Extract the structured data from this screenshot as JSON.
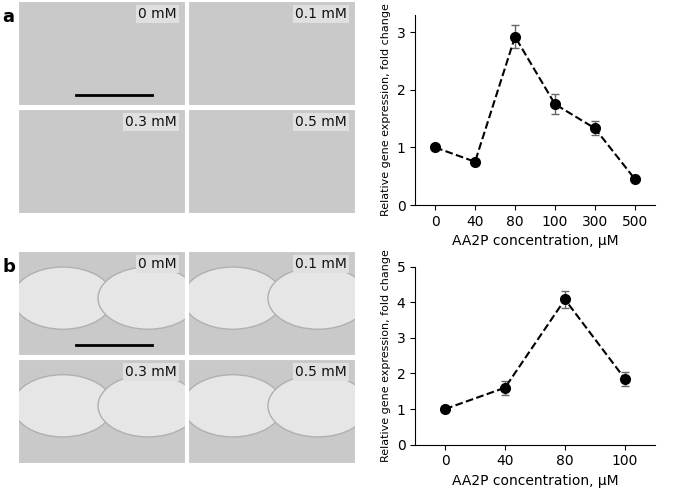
{
  "panel_labels": [
    "a",
    "b"
  ],
  "image_labels": [
    [
      "0 mM",
      "0.1 mM",
      "0.3 mM",
      "0.5 mM"
    ],
    [
      "0 mM",
      "0.1 mM",
      "0.3 mM",
      "0.5 mM"
    ]
  ],
  "chart_data": [
    {
      "type": "line",
      "x_label": "AA2P concentration, μM",
      "y_label": "Relative gene expression, fold change",
      "categories": [
        "0",
        "40",
        "80",
        "100",
        "300",
        "500"
      ],
      "values": [
        1.0,
        0.75,
        2.92,
        1.75,
        1.33,
        0.45
      ],
      "errors": [
        0.03,
        0.03,
        0.2,
        0.17,
        0.12,
        0.03
      ],
      "color": "#000000",
      "marker": "o",
      "line_style": "dashed",
      "ylim": [
        0,
        3.3
      ],
      "yticks": [
        0,
        1,
        2,
        3
      ],
      "grid": false
    },
    {
      "type": "line",
      "x_label": "AA2P concentration, μM",
      "y_label": "Relative gene expression, fold change",
      "categories": [
        "0",
        "40",
        "80",
        "100"
      ],
      "values": [
        1.0,
        1.6,
        4.08,
        1.85
      ],
      "errors": [
        0.03,
        0.2,
        0.25,
        0.2
      ],
      "color": "#000000",
      "marker": "o",
      "line_style": "dashed",
      "ylim": [
        0,
        5
      ],
      "yticks": [
        0,
        1,
        2,
        3,
        4,
        5
      ],
      "grid": false
    }
  ]
}
